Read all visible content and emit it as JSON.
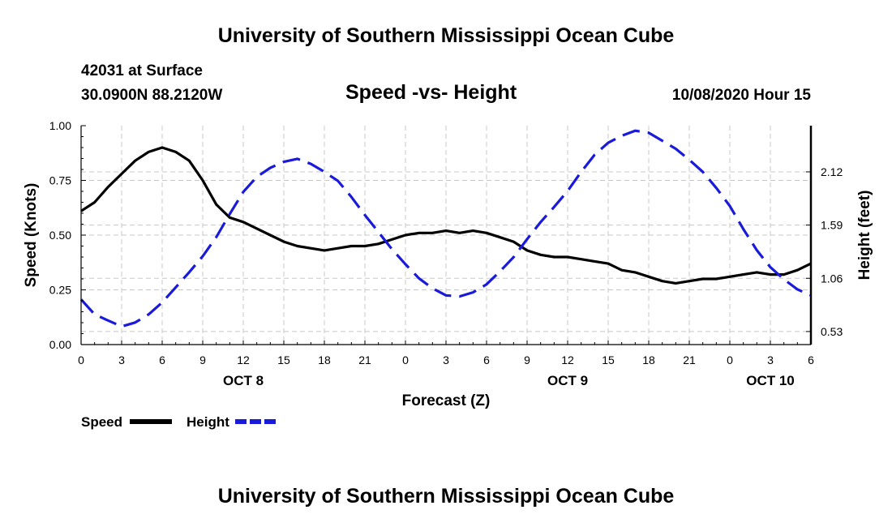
{
  "header": {
    "title": "University of Southern Mississippi Ocean Cube",
    "station": "42031 at Surface",
    "coordinates": "30.0900N 88.2120W",
    "chart_title": "Speed -vs- Height",
    "date_label": "10/08/2020 Hour 15"
  },
  "footer": {
    "title": "University of Southern Mississippi Ocean Cube"
  },
  "colors": {
    "speed": "#000000",
    "height": "#1a1adb",
    "grid": "#c8c8c8"
  },
  "chart_data": {
    "type": "line",
    "title": "Speed -vs- Height",
    "xlabel": "Forecast (Z)",
    "ylabel": "Speed (Knots)",
    "y2label": "Height (feet)",
    "x_range": [
      0,
      54
    ],
    "ylim": [
      0,
      1
    ],
    "y2lim": [
      0.4,
      2.58
    ],
    "yticks": [
      "0.00",
      "0.25",
      "0.50",
      "0.75",
      "1.00"
    ],
    "y2ticks": [
      "0.53",
      "1.06",
      "1.59",
      "2.12"
    ],
    "xtick_labels": [
      "0",
      "3",
      "6",
      "9",
      "12",
      "15",
      "18",
      "21",
      "0",
      "3",
      "6",
      "9",
      "12",
      "15",
      "18",
      "21",
      "0",
      "3",
      "6"
    ],
    "day_labels": [
      {
        "label": "OCT 8",
        "x": 12
      },
      {
        "label": "OCT 9",
        "x": 36
      },
      {
        "label": "OCT 10",
        "x": 51
      }
    ],
    "grid": true,
    "legend_position": "bottom-left",
    "series": [
      {
        "name": "Speed",
        "axis": "left",
        "style": "solid",
        "x": [
          0,
          1,
          2,
          3,
          4,
          5,
          6,
          7,
          8,
          9,
          10,
          11,
          12,
          13,
          14,
          15,
          16,
          17,
          18,
          19,
          20,
          21,
          22,
          23,
          24,
          25,
          26,
          27,
          28,
          29,
          30,
          31,
          32,
          33,
          34,
          35,
          36,
          37,
          38,
          39,
          40,
          41,
          42,
          43,
          44,
          45,
          46,
          47,
          48,
          49,
          50,
          51,
          52,
          53,
          54
        ],
        "values": [
          0.61,
          0.65,
          0.72,
          0.78,
          0.84,
          0.88,
          0.9,
          0.88,
          0.84,
          0.75,
          0.64,
          0.58,
          0.56,
          0.53,
          0.5,
          0.47,
          0.45,
          0.44,
          0.43,
          0.44,
          0.45,
          0.45,
          0.46,
          0.48,
          0.5,
          0.51,
          0.51,
          0.52,
          0.51,
          0.52,
          0.51,
          0.49,
          0.47,
          0.43,
          0.41,
          0.4,
          0.4,
          0.39,
          0.38,
          0.37,
          0.34,
          0.33,
          0.31,
          0.29,
          0.28,
          0.29,
          0.3,
          0.3,
          0.31,
          0.32,
          0.33,
          0.32,
          0.32,
          0.34,
          0.37
        ]
      },
      {
        "name": "Height",
        "axis": "right",
        "style": "dashed",
        "x": [
          0,
          1,
          2,
          3,
          4,
          5,
          6,
          7,
          8,
          9,
          10,
          11,
          12,
          13,
          14,
          15,
          16,
          17,
          18,
          19,
          20,
          21,
          22,
          23,
          24,
          25,
          26,
          27,
          28,
          29,
          30,
          31,
          32,
          33,
          34,
          35,
          36,
          37,
          38,
          39,
          40,
          41,
          42,
          43,
          44,
          45,
          46,
          47,
          48,
          49,
          50,
          51,
          52,
          53,
          54
        ],
        "values": [
          0.85,
          0.7,
          0.64,
          0.58,
          0.62,
          0.7,
          0.82,
          0.97,
          1.12,
          1.28,
          1.47,
          1.7,
          1.92,
          2.07,
          2.16,
          2.22,
          2.25,
          2.2,
          2.12,
          2.03,
          1.87,
          1.69,
          1.52,
          1.35,
          1.2,
          1.06,
          0.96,
          0.89,
          0.88,
          0.92,
          1.0,
          1.13,
          1.27,
          1.45,
          1.62,
          1.77,
          1.93,
          2.12,
          2.29,
          2.41,
          2.48,
          2.53,
          2.51,
          2.43,
          2.35,
          2.24,
          2.12,
          1.96,
          1.78,
          1.55,
          1.34,
          1.17,
          1.05,
          0.95,
          0.89
        ]
      }
    ]
  }
}
